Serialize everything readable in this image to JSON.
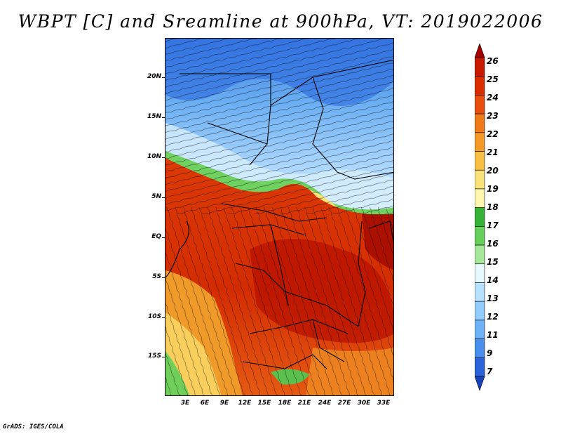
{
  "title": "WBPT [C] and Sreamline at 900hPa, VT: 2019022006",
  "footer": "GrADS: IGES/COLA",
  "latitude_ticks": [
    "20N",
    "15N",
    "10N",
    "5N",
    "EQ",
    "5S",
    "10S",
    "15S"
  ],
  "longitude_ticks": [
    "3E",
    "6E",
    "9E",
    "12E",
    "15E",
    "18E",
    "21E",
    "24E",
    "27E",
    "30E",
    "33E"
  ],
  "colorbar": {
    "labels": [
      "26",
      "25",
      "24",
      "23",
      "22",
      "21",
      "20",
      "19",
      "18",
      "17",
      "16",
      "15",
      "14",
      "13",
      "12",
      "11",
      "9",
      "7"
    ],
    "colors": [
      "#a50000",
      "#c81a00",
      "#dc2d00",
      "#e84f0f",
      "#f07a18",
      "#f59a28",
      "#f8bf45",
      "#fae27a",
      "#fcf6ae",
      "#36b237",
      "#68cf5a",
      "#a6e79a",
      "#e8f8ff",
      "#b6e2ff",
      "#92cdff",
      "#6eb2f7",
      "#4a8fee",
      "#2a63d9",
      "#1740b9"
    ]
  },
  "map": {
    "variable": "WBPT [C]",
    "level": "900hPa",
    "valid_time": "2019022006",
    "features": [
      "streamlines",
      "country borders",
      "coastlines"
    ]
  }
}
